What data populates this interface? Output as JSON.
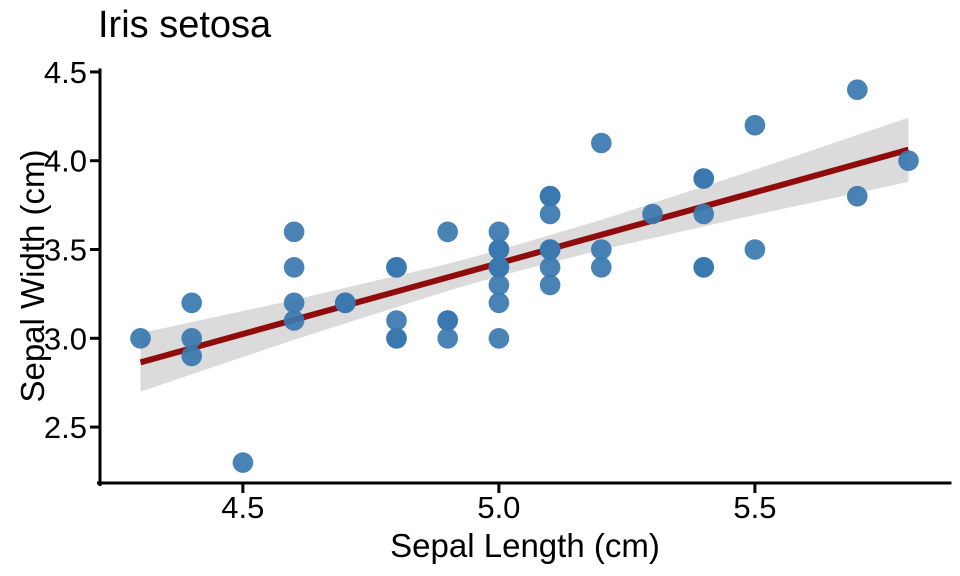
{
  "chart_data": {
    "type": "scatter",
    "title": "Iris setosa",
    "xlabel": "Sepal Length (cm)",
    "ylabel": "Sepal Width (cm)",
    "xlim": [
      4.221,
      5.881
    ],
    "ylim": [
      2.185,
      4.511
    ],
    "grid": false,
    "legend": false,
    "x_ticks": [
      {
        "value": 4.5,
        "label": "4.5"
      },
      {
        "value": 5.0,
        "label": "5.0"
      },
      {
        "value": 5.5,
        "label": "5.5"
      }
    ],
    "y_ticks": [
      {
        "value": 2.5,
        "label": "2.5"
      },
      {
        "value": 3.0,
        "label": "3.0"
      },
      {
        "value": 3.5,
        "label": "3.5"
      },
      {
        "value": 4.0,
        "label": "4.0"
      },
      {
        "value": 4.5,
        "label": "4.5"
      }
    ],
    "series": [
      {
        "name": "setosa-points",
        "color": "#3A78B0",
        "opacity": 0.92,
        "point_radius": 10.3,
        "points": [
          [
            5.1,
            3.5
          ],
          [
            4.9,
            3.0
          ],
          [
            4.7,
            3.2
          ],
          [
            4.6,
            3.1
          ],
          [
            5.0,
            3.6
          ],
          [
            5.4,
            3.9
          ],
          [
            4.6,
            3.4
          ],
          [
            5.0,
            3.4
          ],
          [
            4.4,
            2.9
          ],
          [
            4.9,
            3.1
          ],
          [
            5.4,
            3.7
          ],
          [
            4.8,
            3.4
          ],
          [
            4.8,
            3.0
          ],
          [
            4.3,
            3.0
          ],
          [
            5.8,
            4.0
          ],
          [
            5.7,
            4.4
          ],
          [
            5.4,
            3.9
          ],
          [
            5.1,
            3.5
          ],
          [
            5.7,
            3.8
          ],
          [
            5.1,
            3.8
          ],
          [
            5.4,
            3.4
          ],
          [
            5.1,
            3.7
          ],
          [
            4.6,
            3.6
          ],
          [
            5.1,
            3.3
          ],
          [
            4.8,
            3.4
          ],
          [
            5.0,
            3.0
          ],
          [
            5.0,
            3.4
          ],
          [
            5.2,
            3.5
          ],
          [
            5.2,
            3.4
          ],
          [
            4.7,
            3.2
          ],
          [
            4.8,
            3.1
          ],
          [
            5.4,
            3.4
          ],
          [
            5.2,
            4.1
          ],
          [
            5.5,
            4.2
          ],
          [
            4.9,
            3.1
          ],
          [
            5.0,
            3.2
          ],
          [
            5.5,
            3.5
          ],
          [
            4.9,
            3.6
          ],
          [
            4.4,
            3.0
          ],
          [
            5.1,
            3.4
          ],
          [
            5.0,
            3.5
          ],
          [
            4.5,
            2.3
          ],
          [
            4.4,
            3.2
          ],
          [
            5.0,
            3.5
          ],
          [
            5.1,
            3.8
          ],
          [
            4.8,
            3.0
          ],
          [
            5.1,
            3.8
          ],
          [
            4.6,
            3.2
          ],
          [
            5.3,
            3.7
          ],
          [
            5.0,
            3.3
          ]
        ]
      }
    ],
    "regression": {
      "type": "linear",
      "line_color": "#900C0C",
      "line_width": 6,
      "band_color": "#DBDBDB",
      "x": [
        4.3,
        4.6,
        4.9,
        5.0,
        5.2,
        5.5,
        5.8
      ],
      "fit": [
        2.864,
        3.104,
        3.343,
        3.423,
        3.583,
        3.822,
        4.062
      ],
      "upper": [
        3.029,
        3.216,
        3.419,
        3.496,
        3.667,
        3.949,
        4.243
      ],
      "lower": [
        2.699,
        2.992,
        3.267,
        3.35,
        3.499,
        3.695,
        3.881
      ]
    },
    "axis_color": "#000000"
  }
}
